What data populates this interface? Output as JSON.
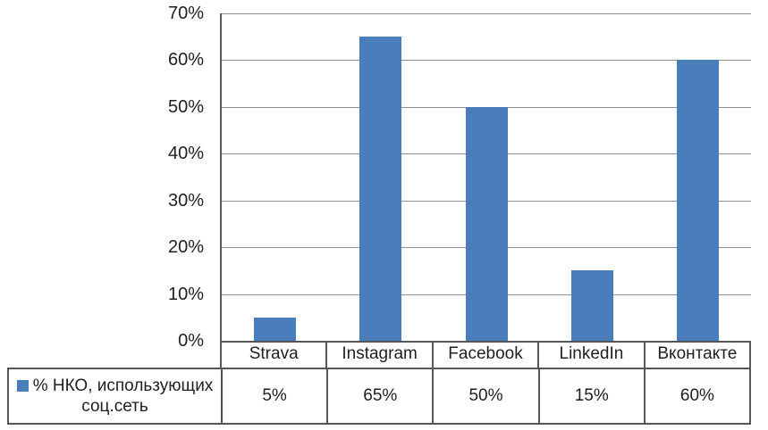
{
  "chart_data": {
    "type": "bar",
    "title": "",
    "categories": [
      "Strava",
      "Instagram",
      "Facebook",
      "LinkedIn",
      "Вконтакте"
    ],
    "series": [
      {
        "name": "% НКО, использующих соц.сеть",
        "values": [
          5,
          65,
          50,
          15,
          60
        ]
      }
    ],
    "xlabel": "",
    "ylabel": "",
    "ylim": [
      0,
      70
    ],
    "ytick_step": 10,
    "ytick_labels": [
      "0%",
      "10%",
      "20%",
      "30%",
      "40%",
      "50%",
      "60%",
      "70%"
    ],
    "grid": true,
    "legend_position": "data-table-left",
    "data_table": {
      "legend_line1": "% НКО, использующих",
      "legend_line2": "соц.сеть",
      "value_labels": [
        "5%",
        "65%",
        "50%",
        "15%",
        "60%"
      ]
    }
  },
  "colors": {
    "bar": "#4A7EBB",
    "gridline": "#8f8f8f",
    "border": "#565656",
    "text": "#1f1f1f"
  }
}
